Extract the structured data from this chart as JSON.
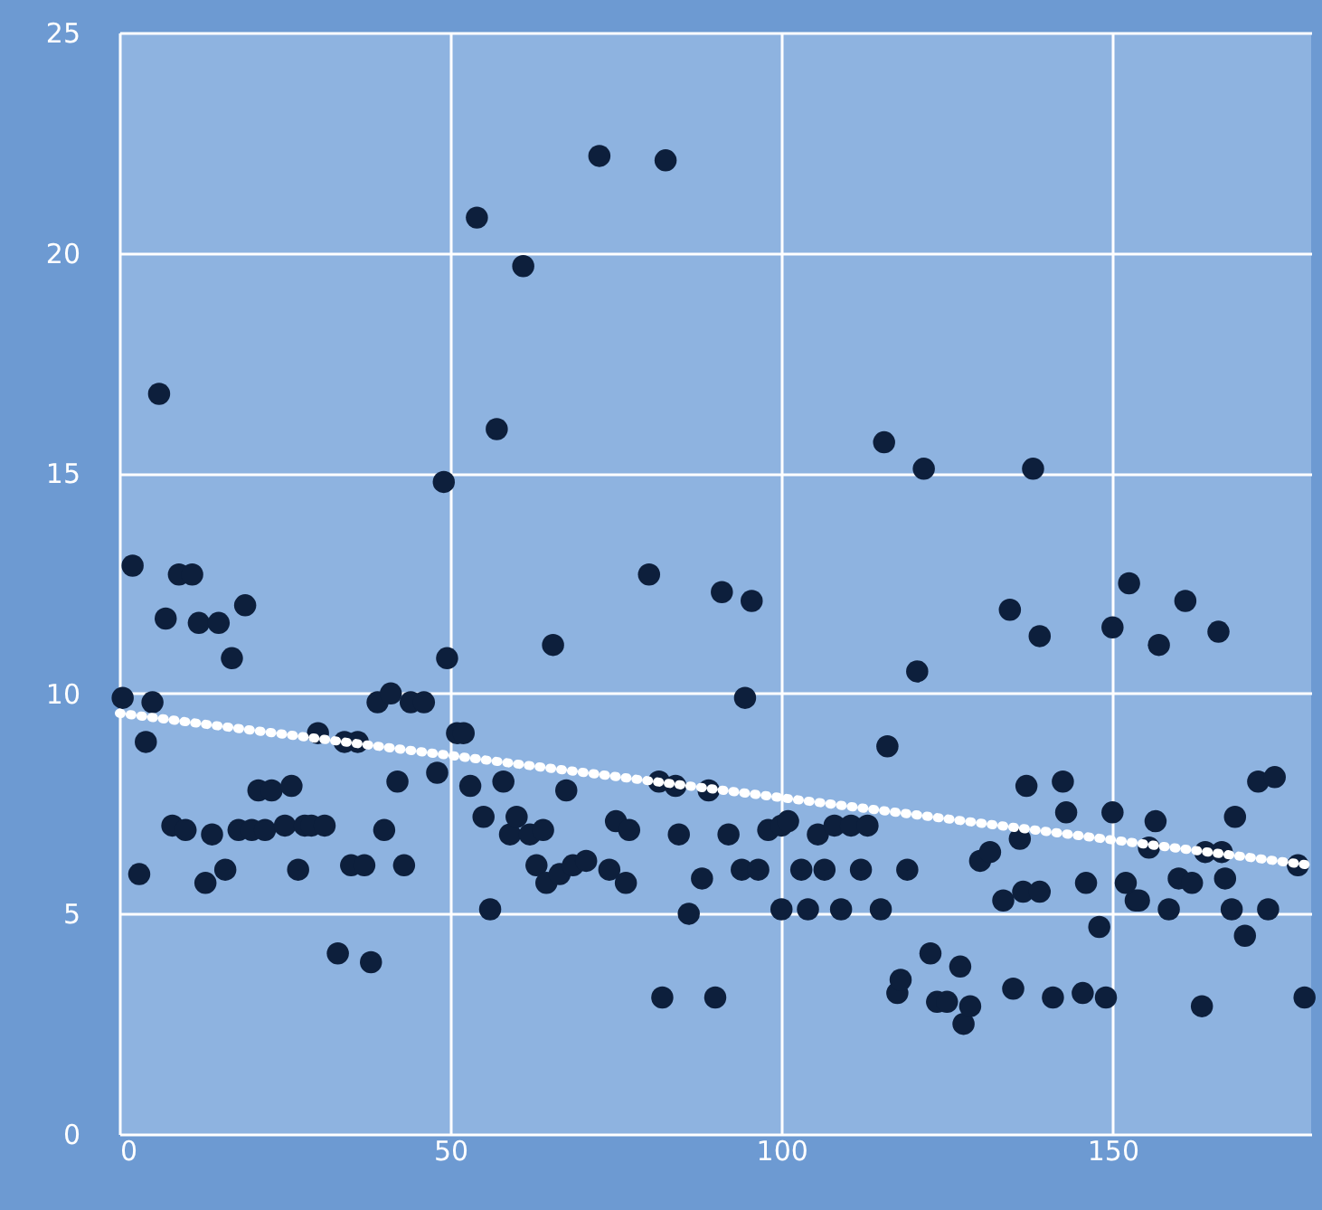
{
  "chart_data": {
    "type": "scatter",
    "xlim": [
      0,
      180
    ],
    "ylim": [
      0,
      25
    ],
    "xticks": [
      0,
      50,
      100,
      150
    ],
    "yticks": [
      0,
      5,
      10,
      15,
      20,
      25
    ],
    "grid": true,
    "series": [
      {
        "marker": "circle",
        "color": "#0d1f3c",
        "x": [
          0.5,
          2,
          3,
          4,
          5,
          6,
          7,
          8,
          9,
          10,
          11,
          12,
          13,
          14,
          15,
          16,
          17,
          18,
          19,
          20,
          21,
          22,
          23,
          25,
          26,
          27,
          28,
          29,
          30,
          31,
          33,
          34,
          35,
          36,
          37,
          38,
          39,
          40,
          41,
          42,
          43,
          44,
          46,
          48,
          49,
          49.5,
          51,
          52,
          53,
          54,
          55,
          56,
          57,
          58,
          59,
          60,
          61,
          62,
          63,
          64,
          64.5,
          65.5,
          66.5,
          67.5,
          68.5,
          70.5,
          72.5,
          74,
          75,
          76.5,
          77,
          80,
          81.5,
          82,
          82.5,
          84,
          84.5,
          86,
          88,
          89,
          90,
          91,
          92,
          94,
          94.5,
          95.5,
          96.5,
          98,
          100,
          100,
          101,
          103,
          104,
          105.5,
          106.5,
          108,
          109,
          110.5,
          112,
          113,
          115,
          115.5,
          116,
          117.5,
          118,
          119,
          120.5,
          121.5,
          122.5,
          123.5,
          125,
          127,
          127.5,
          128.5,
          130,
          131.5,
          133.5,
          134.5,
          135,
          136,
          136.5,
          137,
          138,
          139,
          139,
          141,
          142.5,
          143,
          145.5,
          146,
          148,
          149,
          150,
          150,
          152,
          152.5,
          153.5,
          154,
          155.5,
          156.5,
          157,
          158.5,
          160,
          161,
          162,
          163.5,
          164,
          166,
          166.5,
          167,
          168,
          168.5,
          170,
          172,
          173.5,
          174.5,
          178,
          179
        ],
        "values": [
          9.9,
          12.9,
          5.9,
          8.9,
          9.8,
          16.8,
          11.7,
          7.0,
          12.7,
          6.9,
          12.7,
          11.6,
          5.7,
          6.8,
          11.6,
          6.0,
          10.8,
          6.9,
          12.0,
          6.9,
          7.8,
          6.9,
          7.8,
          7.0,
          7.9,
          6.0,
          7.0,
          7.0,
          9.1,
          7.0,
          4.1,
          8.9,
          6.1,
          8.9,
          6.1,
          3.9,
          9.8,
          6.9,
          10.0,
          8.0,
          6.1,
          9.8,
          9.8,
          8.2,
          14.8,
          10.8,
          9.1,
          9.1,
          7.9,
          20.8,
          7.2,
          5.1,
          16.0,
          8.0,
          6.8,
          7.2,
          19.7,
          6.8,
          6.1,
          6.9,
          5.7,
          11.1,
          5.9,
          7.8,
          6.1,
          6.2,
          22.2,
          6.0,
          7.1,
          5.7,
          6.9,
          12.7,
          8.0,
          3.1,
          22.1,
          7.9,
          6.8,
          5.0,
          5.8,
          7.8,
          3.1,
          12.3,
          6.8,
          6.0,
          9.9,
          12.1,
          6.0,
          6.9,
          7.0,
          5.1,
          7.1,
          6.0,
          5.1,
          6.8,
          6.0,
          7.0,
          5.1,
          7.0,
          6.0,
          7.0,
          5.1,
          15.7,
          8.8,
          3.2,
          3.5,
          6.0,
          10.5,
          15.1,
          4.1,
          3.0,
          3.0,
          3.8,
          2.5,
          2.9,
          6.2,
          6.4,
          5.3,
          11.9,
          3.3,
          6.7,
          5.5,
          7.9,
          15.1,
          5.5,
          11.3,
          3.1,
          8.0,
          7.3,
          3.2,
          5.7,
          4.7,
          3.1,
          11.5,
          7.3,
          5.7,
          12.5,
          5.3,
          5.3,
          6.5,
          7.1,
          11.1,
          5.1,
          5.8,
          12.1,
          5.7,
          2.9,
          6.4,
          11.4,
          6.4,
          5.8,
          5.1,
          7.2,
          4.5,
          8.0,
          5.1,
          8.1,
          6.1,
          3.1
        ]
      },
      {
        "type": "line",
        "line_style": "dotted",
        "color": "#ffffff",
        "x": [
          0,
          180
        ],
        "values": [
          9.55,
          6.1
        ]
      }
    ]
  }
}
